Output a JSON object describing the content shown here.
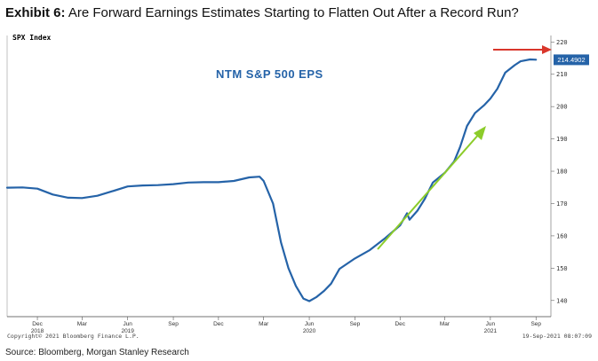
{
  "exhibit": {
    "label": "Exhibit 6:",
    "title": "Are Forward Earnings Estimates Starting to Flatten Out After a Record Run?"
  },
  "index_label": "SPX Index",
  "copyright": "Copyright© 2021 Bloomberg Finance L.P.",
  "timestamp": "19-Sep-2021 08:07:09",
  "source": "Source: Bloomberg, Morgan Stanley Research",
  "colors": {
    "line": "#2563a8",
    "green_arrow": "#8ccc2a",
    "red_arrow": "#d9362b",
    "last_value_box": "#2563a8"
  },
  "chart_data": {
    "type": "line",
    "annotation": "NTM S&P 500 EPS",
    "last_value_label": "214.4902",
    "ylim": [
      135,
      222
    ],
    "y_ticks": [
      140,
      150,
      160,
      170,
      180,
      190,
      200,
      210,
      220
    ],
    "x_ticks": [
      {
        "label": "Dec",
        "year": "2018",
        "date": "2018-12-01"
      },
      {
        "label": "Mar",
        "year": "",
        "date": "2019-03-01"
      },
      {
        "label": "Jun",
        "year": "2019",
        "date": "2019-06-01"
      },
      {
        "label": "Sep",
        "year": "",
        "date": "2019-09-01"
      },
      {
        "label": "Dec",
        "year": "",
        "date": "2019-12-01"
      },
      {
        "label": "Mar",
        "year": "",
        "date": "2020-03-01"
      },
      {
        "label": "Jun",
        "year": "2020",
        "date": "2020-06-01"
      },
      {
        "label": "Sep",
        "year": "",
        "date": "2020-09-01"
      },
      {
        "label": "Dec",
        "year": "",
        "date": "2020-12-01"
      },
      {
        "label": "Mar",
        "year": "",
        "date": "2021-03-01"
      },
      {
        "label": "Jun",
        "year": "2021",
        "date": "2021-06-01"
      },
      {
        "label": "Sep",
        "year": "",
        "date": "2021-09-01"
      }
    ],
    "series": [
      {
        "points": [
          [
            "2018-10-01",
            174.9
          ],
          [
            "2018-11-01",
            175.0
          ],
          [
            "2018-12-01",
            174.6
          ],
          [
            "2019-01-01",
            172.8
          ],
          [
            "2019-02-01",
            171.8
          ],
          [
            "2019-03-01",
            171.7
          ],
          [
            "2019-04-01",
            172.4
          ],
          [
            "2019-05-01",
            173.8
          ],
          [
            "2019-06-01",
            175.3
          ],
          [
            "2019-07-01",
            175.6
          ],
          [
            "2019-08-01",
            175.7
          ],
          [
            "2019-09-01",
            176.0
          ],
          [
            "2019-10-01",
            176.5
          ],
          [
            "2019-11-01",
            176.6
          ],
          [
            "2019-12-01",
            176.6
          ],
          [
            "2020-01-01",
            177.0
          ],
          [
            "2020-02-01",
            178.1
          ],
          [
            "2020-02-22",
            178.3
          ],
          [
            "2020-03-01",
            177.0
          ],
          [
            "2020-03-20",
            170.0
          ],
          [
            "2020-04-05",
            158.0
          ],
          [
            "2020-04-20",
            150.0
          ],
          [
            "2020-05-05",
            144.5
          ],
          [
            "2020-05-20",
            140.6
          ],
          [
            "2020-06-01",
            139.8
          ],
          [
            "2020-06-15",
            141.0
          ],
          [
            "2020-07-01",
            143.0
          ],
          [
            "2020-07-15",
            145.2
          ],
          [
            "2020-08-01",
            149.8
          ],
          [
            "2020-09-01",
            153.0
          ],
          [
            "2020-10-01",
            155.6
          ],
          [
            "2020-11-01",
            159.3
          ],
          [
            "2020-12-01",
            163.2
          ],
          [
            "2020-12-15",
            167.0
          ],
          [
            "2020-12-20",
            165.0
          ],
          [
            "2021-01-05",
            167.8
          ],
          [
            "2021-01-20",
            171.5
          ],
          [
            "2021-02-05",
            176.5
          ],
          [
            "2021-03-01",
            179.5
          ],
          [
            "2021-03-20",
            183.0
          ],
          [
            "2021-04-01",
            187.5
          ],
          [
            "2021-04-15",
            194.0
          ],
          [
            "2021-05-01",
            198.0
          ],
          [
            "2021-05-20",
            200.5
          ],
          [
            "2021-06-01",
            202.5
          ],
          [
            "2021-06-15",
            205.5
          ],
          [
            "2021-07-01",
            210.5
          ],
          [
            "2021-07-20",
            212.8
          ],
          [
            "2021-08-01",
            214.0
          ],
          [
            "2021-08-20",
            214.6
          ],
          [
            "2021-09-01",
            214.5
          ]
        ]
      }
    ]
  }
}
